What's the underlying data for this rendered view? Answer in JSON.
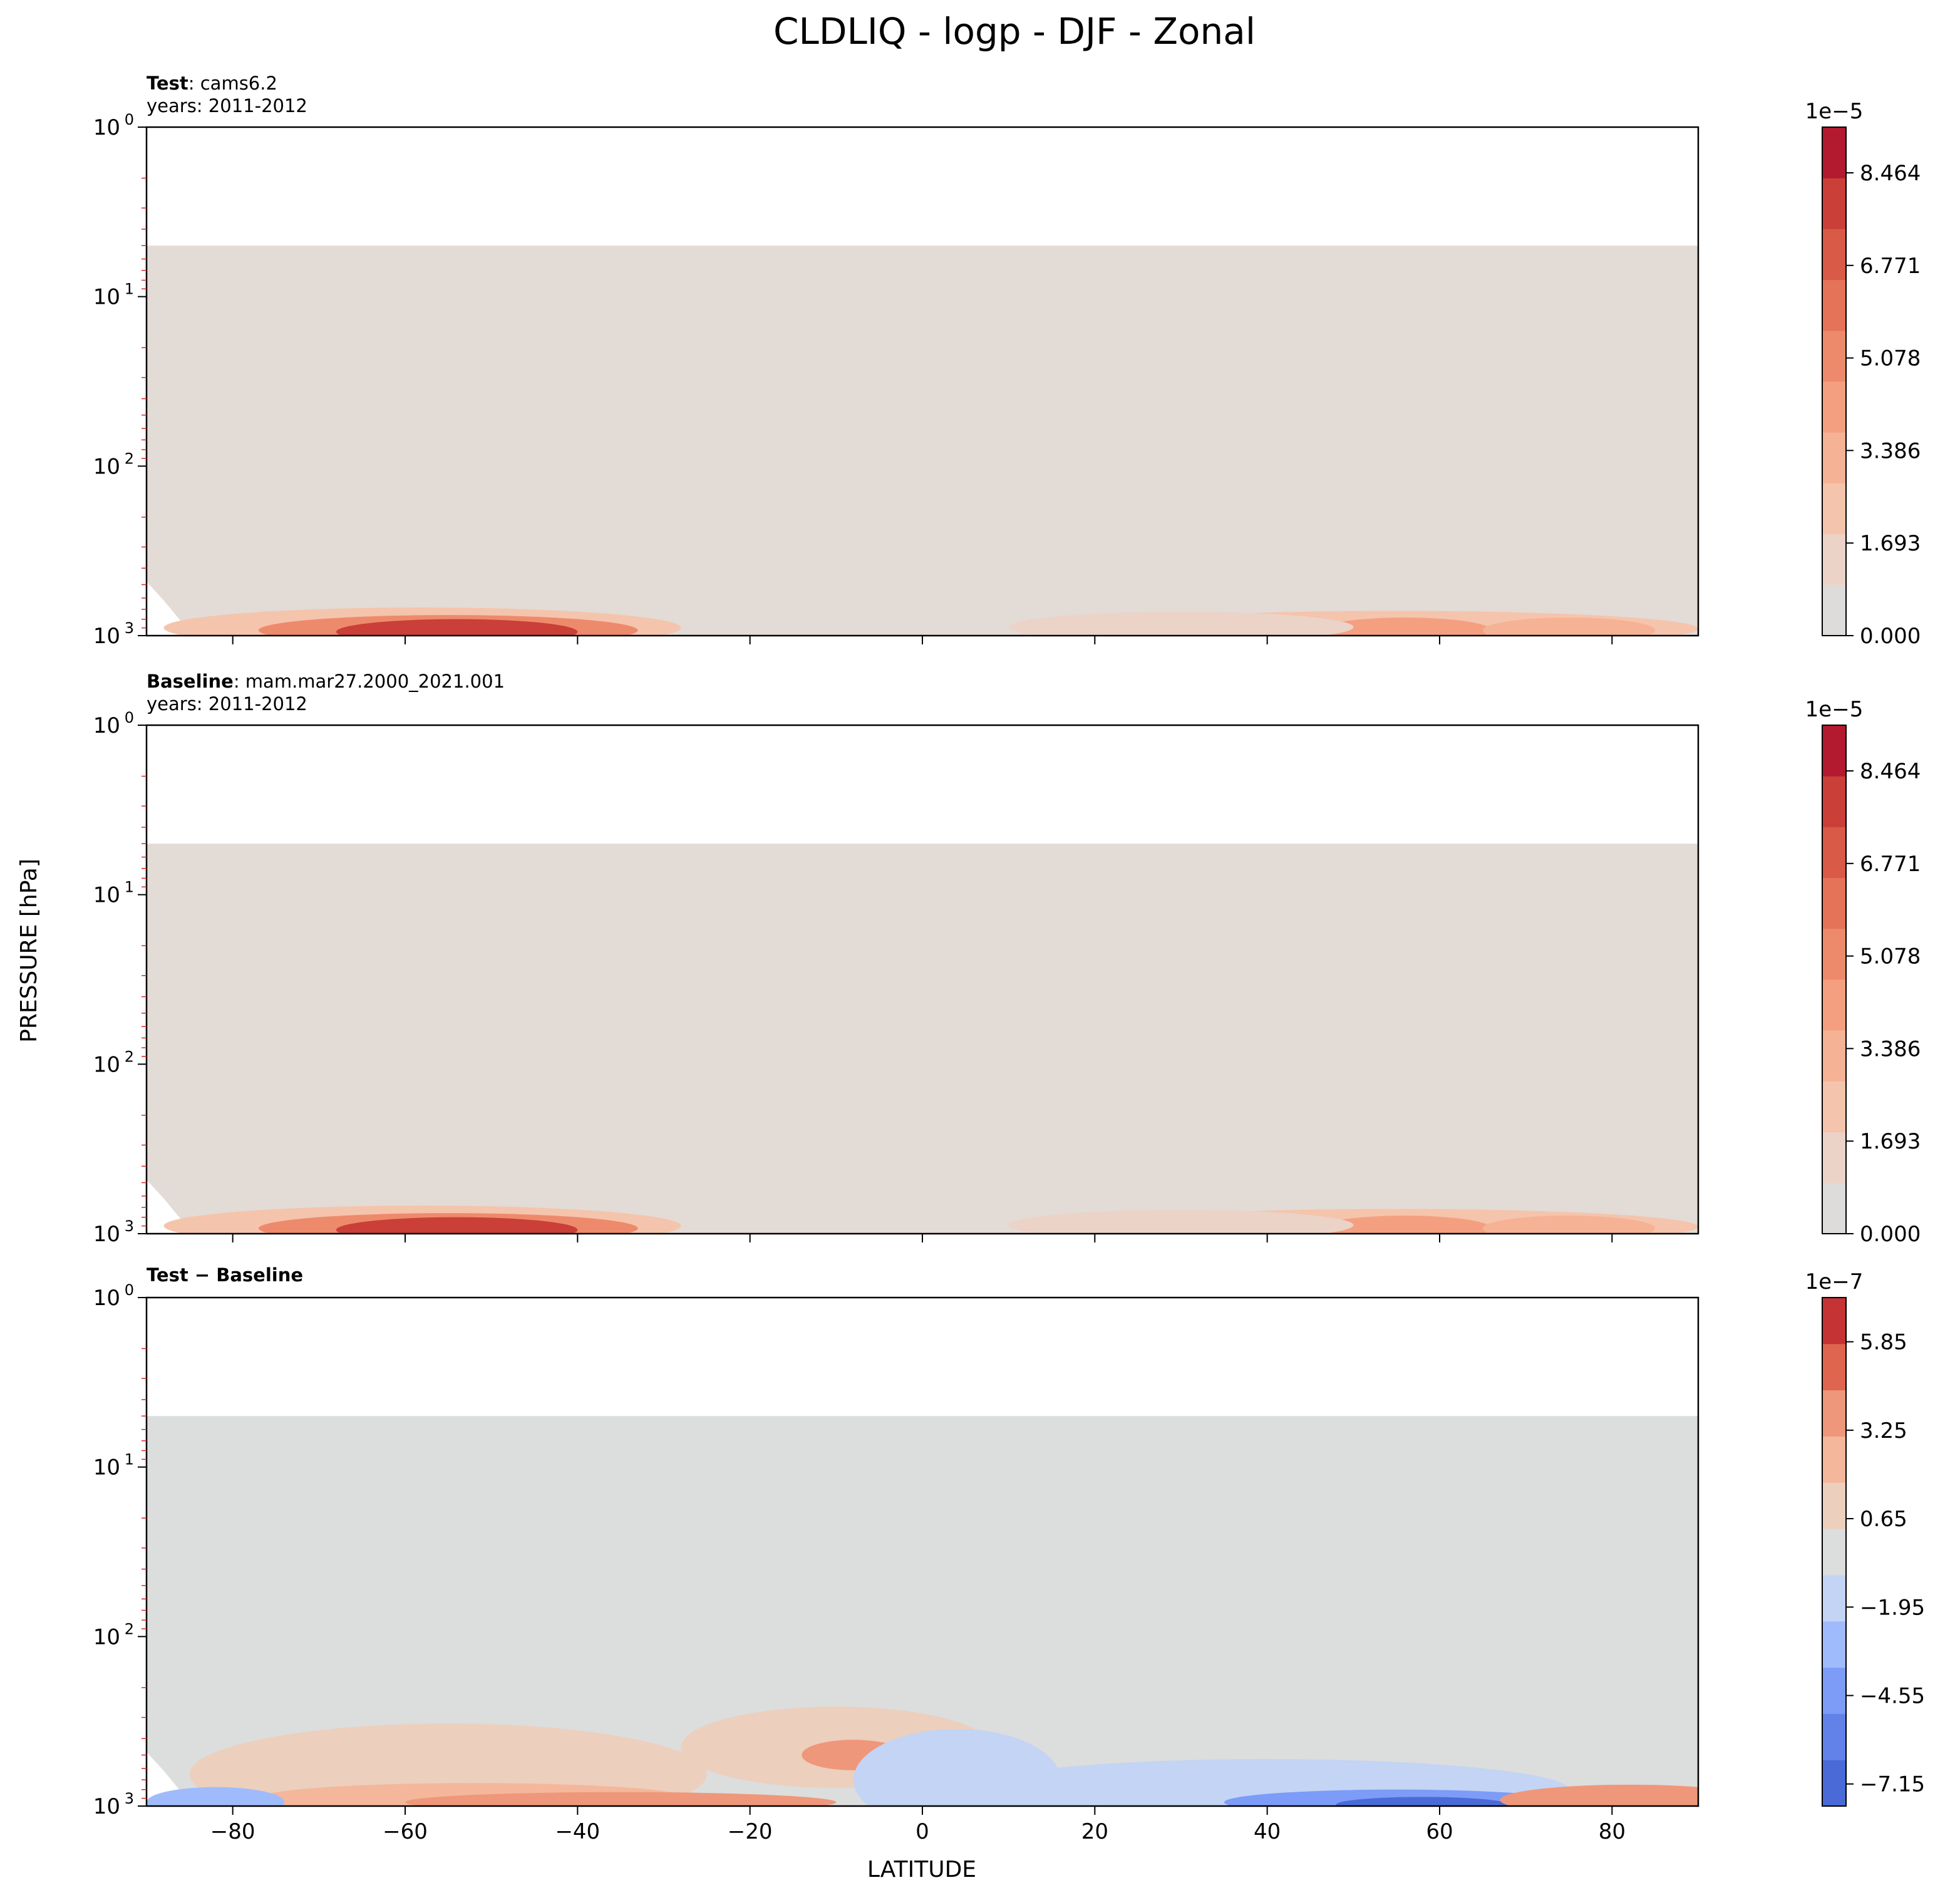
{
  "figure": {
    "title": "CLDLIQ - logp - DJF - Zonal",
    "xlabel": "LATITUDE",
    "ylabel": "PRESSURE [hPa]"
  },
  "chart_data": [
    {
      "type": "heatmap",
      "panel": "test",
      "title_bold": "Test",
      "title_rest": ": cams6.2",
      "subtitle": "years: 2011-2012",
      "x_ticks": [
        -80,
        -60,
        -40,
        -20,
        0,
        20,
        40,
        60,
        80
      ],
      "xlim": [
        -90,
        90
      ],
      "y_scale": "log",
      "ylim": [
        1000,
        1
      ],
      "y_ticks": [
        {
          "base": "10",
          "exp": "0"
        },
        {
          "base": "10",
          "exp": "1"
        },
        {
          "base": "10",
          "exp": "2"
        },
        {
          "base": "10",
          "exp": "3"
        }
      ],
      "colorbar": {
        "exponent_label": "1e−5",
        "tick_labels": [
          "0.000",
          "1.693",
          "3.386",
          "5.078",
          "6.771",
          "8.464"
        ],
        "tick_values": [
          0.0,
          1.693,
          3.386,
          5.078,
          6.771,
          8.464
        ],
        "range": [
          0,
          9.3
        ],
        "levels": [
          "#dddcdb",
          "#ecd3c7",
          "#f5c4ac",
          "#f6b295",
          "#f4a080",
          "#ee8a6c",
          "#e57358",
          "#d95a47",
          "#ca3f38",
          "#b3192f"
        ]
      },
      "background_color": "#e3dbd5",
      "model_top_hPa": 5,
      "blobs": [
        {
          "lat": -58,
          "p": 900,
          "w": 30,
          "h": 0.04,
          "color": "#f5c4ac"
        },
        {
          "lat": -55,
          "p": 930,
          "w": 22,
          "h": 0.03,
          "color": "#ee8a6c"
        },
        {
          "lat": -54,
          "p": 950,
          "w": 14,
          "h": 0.025,
          "color": "#ca3f38"
        },
        {
          "lat": 55,
          "p": 910,
          "w": 35,
          "h": 0.035,
          "color": "#f5c4ac"
        },
        {
          "lat": 56,
          "p": 930,
          "w": 10,
          "h": 0.025,
          "color": "#f4a080"
        },
        {
          "lat": 30,
          "p": 890,
          "w": 20,
          "h": 0.03,
          "color": "#ecd3c7"
        },
        {
          "lat": 75,
          "p": 930,
          "w": 10,
          "h": 0.025,
          "color": "#f6b295"
        }
      ]
    },
    {
      "type": "heatmap",
      "panel": "baseline",
      "title_bold": "Baseline",
      "title_rest": ": mam.mar27.2000_2021.001",
      "subtitle": "years: 2011-2012",
      "x_ticks": [
        -80,
        -60,
        -40,
        -20,
        0,
        20,
        40,
        60,
        80
      ],
      "xlim": [
        -90,
        90
      ],
      "y_scale": "log",
      "ylim": [
        1000,
        1
      ],
      "y_ticks": [
        {
          "base": "10",
          "exp": "0"
        },
        {
          "base": "10",
          "exp": "1"
        },
        {
          "base": "10",
          "exp": "2"
        },
        {
          "base": "10",
          "exp": "3"
        }
      ],
      "colorbar": {
        "exponent_label": "1e−5",
        "tick_labels": [
          "0.000",
          "1.693",
          "3.386",
          "5.078",
          "6.771",
          "8.464"
        ],
        "tick_values": [
          0.0,
          1.693,
          3.386,
          5.078,
          6.771,
          8.464
        ],
        "range": [
          0,
          9.3
        ],
        "levels": [
          "#dddcdb",
          "#ecd3c7",
          "#f5c4ac",
          "#f6b295",
          "#f4a080",
          "#ee8a6c",
          "#e57358",
          "#d95a47",
          "#ca3f38",
          "#b3192f"
        ]
      },
      "background_color": "#e3dbd5",
      "model_top_hPa": 5,
      "blobs": [
        {
          "lat": -58,
          "p": 900,
          "w": 30,
          "h": 0.04,
          "color": "#f5c4ac"
        },
        {
          "lat": -55,
          "p": 930,
          "w": 22,
          "h": 0.03,
          "color": "#ee8a6c"
        },
        {
          "lat": -54,
          "p": 950,
          "w": 14,
          "h": 0.025,
          "color": "#ca3f38"
        },
        {
          "lat": 55,
          "p": 910,
          "w": 35,
          "h": 0.035,
          "color": "#f5c4ac"
        },
        {
          "lat": 56,
          "p": 930,
          "w": 10,
          "h": 0.025,
          "color": "#f4a080"
        },
        {
          "lat": 30,
          "p": 890,
          "w": 20,
          "h": 0.03,
          "color": "#ecd3c7"
        },
        {
          "lat": 75,
          "p": 930,
          "w": 10,
          "h": 0.025,
          "color": "#f6b295"
        }
      ]
    },
    {
      "type": "heatmap",
      "panel": "difference",
      "title_bold": "Test − Baseline",
      "title_rest": "",
      "subtitle": "",
      "x_ticks": [
        -80,
        -60,
        -40,
        -20,
        0,
        20,
        40,
        60,
        80
      ],
      "xlim": [
        -90,
        90
      ],
      "y_scale": "log",
      "ylim": [
        1000,
        1
      ],
      "y_ticks": [
        {
          "base": "10",
          "exp": "0"
        },
        {
          "base": "10",
          "exp": "1"
        },
        {
          "base": "10",
          "exp": "2"
        },
        {
          "base": "10",
          "exp": "3"
        }
      ],
      "colorbar": {
        "exponent_label": "1e−7",
        "tick_labels": [
          "−7.15",
          "−4.55",
          "−1.95",
          "0.65",
          "3.25",
          "5.85"
        ],
        "tick_values": [
          -7.15,
          -4.55,
          -1.95,
          0.65,
          3.25,
          5.85
        ],
        "range": [
          -7.8,
          7.15
        ],
        "levels": [
          "#4a6ad8",
          "#6282ea",
          "#7c9cf8",
          "#a0bbfb",
          "#c3d4f5",
          "#dcdddd",
          "#eccfbd",
          "#f4b79b",
          "#ef977a",
          "#e0654f",
          "#c53334"
        ]
      },
      "background_color": "#dcdddd",
      "model_top_hPa": 5,
      "blobs": [
        {
          "lat": -55,
          "p": 650,
          "w": 30,
          "h": 0.1,
          "color": "#eccfbd"
        },
        {
          "lat": -52,
          "p": 900,
          "w": 25,
          "h": 0.03,
          "color": "#f4b79b"
        },
        {
          "lat": -35,
          "p": 950,
          "w": 25,
          "h": 0.02,
          "color": "#ef977a"
        },
        {
          "lat": -10,
          "p": 450,
          "w": 18,
          "h": 0.08,
          "color": "#eccfbd"
        },
        {
          "lat": -8,
          "p": 500,
          "w": 6,
          "h": 0.03,
          "color": "#ef977a"
        },
        {
          "lat": 4,
          "p": 700,
          "w": 12,
          "h": 0.1,
          "color": "#c3d4f5"
        },
        {
          "lat": 40,
          "p": 800,
          "w": 35,
          "h": 0.06,
          "color": "#c3d4f5"
        },
        {
          "lat": 55,
          "p": 950,
          "w": 20,
          "h": 0.025,
          "color": "#7c9cf8"
        },
        {
          "lat": 58,
          "p": 980,
          "w": 10,
          "h": 0.015,
          "color": "#4a6ad8"
        },
        {
          "lat": 82,
          "p": 920,
          "w": 15,
          "h": 0.03,
          "color": "#ef977a"
        },
        {
          "lat": -82,
          "p": 950,
          "w": 8,
          "h": 0.03,
          "color": "#a0bbfb"
        }
      ]
    }
  ]
}
